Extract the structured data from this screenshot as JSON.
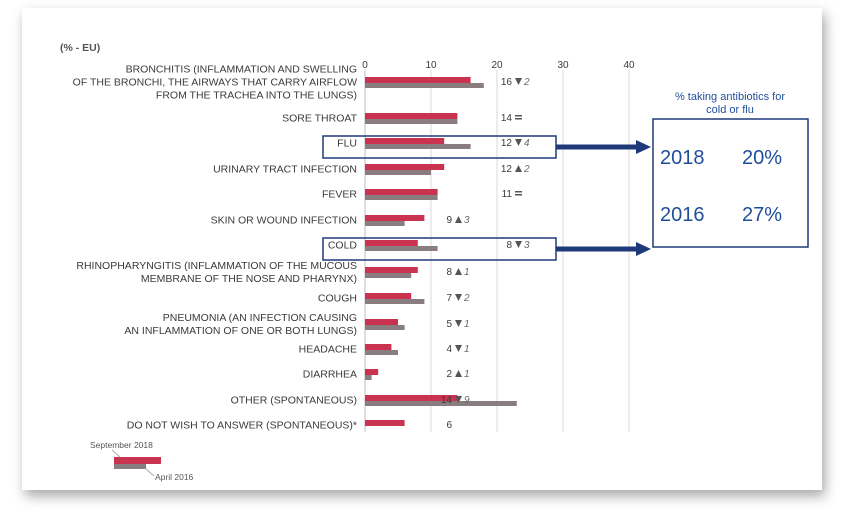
{
  "subtitle": "(% - EU)",
  "colors": {
    "sep2018": "#c9334f",
    "apr2016": "#8a7d80",
    "accent": "#1f3a7a",
    "insetText": "#1f4e9a"
  },
  "chart_data": {
    "type": "bar",
    "orientation": "horizontal",
    "xlim": [
      0,
      40
    ],
    "ticks": [
      "0",
      "10",
      "20",
      "30",
      "40"
    ],
    "categories": [
      [
        "BRONCHITIS (INFLAMMATION AND SWELLING",
        "OF THE BRONCHI, THE AIRWAYS THAT CARRY AIRFLOW",
        "FROM THE TRACHEA INTO THE LUNGS)"
      ],
      [
        "SORE THROAT"
      ],
      [
        "FLU"
      ],
      [
        "URINARY TRACT INFECTION"
      ],
      [
        "FEVER"
      ],
      [
        "SKIN OR WOUND INFECTION"
      ],
      [
        "COLD"
      ],
      [
        "RHINOPHARYNGITIS (INFLAMMATION OF THE MUCOUS",
        "MEMBRANE OF THE NOSE AND PHARYNX)"
      ],
      [
        "COUGH"
      ],
      [
        "PNEUMONIA (AN INFECTION CAUSING",
        "AN INFLAMMATION OF ONE OR BOTH LUNGS)"
      ],
      [
        "HEADACHE"
      ],
      [
        "DIARRHEA"
      ],
      [
        "OTHER (SPONTANEOUS)"
      ],
      [
        "DO NOT WISH TO ANSWER (SPONTANEOUS)*"
      ]
    ],
    "series": [
      {
        "name": "September 2018",
        "values": [
          16,
          14,
          12,
          12,
          11,
          9,
          8,
          8,
          7,
          5,
          4,
          2,
          14,
          6
        ]
      },
      {
        "name": "April 2016",
        "values": [
          18,
          14,
          16,
          10,
          11,
          6,
          11,
          7,
          9,
          6,
          5,
          1,
          23,
          null
        ]
      }
    ],
    "value_labels": [
      "16",
      "14",
      "12",
      "12",
      "11",
      "9",
      "8",
      "8",
      "7",
      "5",
      "4",
      "2",
      "14",
      "6"
    ],
    "changes": [
      {
        "dir": "down",
        "amount": "2"
      },
      {
        "dir": "equal",
        "amount": ""
      },
      {
        "dir": "down",
        "amount": "4"
      },
      {
        "dir": "up",
        "amount": "2"
      },
      {
        "dir": "equal",
        "amount": ""
      },
      {
        "dir": "up",
        "amount": "3"
      },
      {
        "dir": "down",
        "amount": "3"
      },
      {
        "dir": "up",
        "amount": "1"
      },
      {
        "dir": "down",
        "amount": "2"
      },
      {
        "dir": "down",
        "amount": "1"
      },
      {
        "dir": "down",
        "amount": "1"
      },
      {
        "dir": "up",
        "amount": "1"
      },
      {
        "dir": "down",
        "amount": "9"
      },
      {
        "dir": "none",
        "amount": ""
      }
    ],
    "highlighted": [
      2,
      6
    ]
  },
  "inset": {
    "title_lines": [
      "% taking antibiotics for",
      "cold or flu"
    ],
    "rows": [
      {
        "year": "2018",
        "value": "20%"
      },
      {
        "year": "2016",
        "value": "27%"
      }
    ]
  },
  "legend": {
    "sep_label": "September 2018",
    "apr_label": "April 2016"
  }
}
